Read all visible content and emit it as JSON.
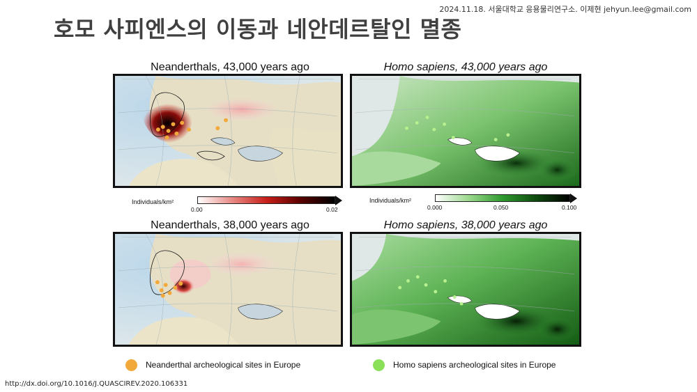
{
  "header": {
    "note": "2024.11.18. 서울대학교 응용물리연구소. 이제현 jehyun.lee@gmail.com",
    "title": "호모 사피엔스의 이동과 네안데르탈인 멸종"
  },
  "panels": {
    "nea_43": {
      "title": "Neanderthals, 43,000 years ago"
    },
    "hs_43": {
      "title": "Homo sapiens, 43,000 years ago"
    },
    "nea_38": {
      "title": "Neanderthals, 38,000 years ago"
    },
    "hs_38": {
      "title": "Homo sapiens, 38,000 years ago"
    }
  },
  "scales": {
    "neanderthal": {
      "label": "Individuals/km²",
      "min": "0.00",
      "max": "0.02",
      "color_low": "#ffffff",
      "color_mid": "#c8201b",
      "color_high": "#000000"
    },
    "sapiens": {
      "label": "Individuals/km²",
      "min": "0.000",
      "mid": "0.050",
      "max": "0.100",
      "color_low": "#ffffff",
      "color_mid": "#2f9a2f",
      "color_high": "#000000"
    }
  },
  "legend": {
    "neanderthal": {
      "label": "Neanderthal archeological sites in Europe",
      "color": "#f2a93b"
    },
    "sapiens": {
      "label": "Homo sapiens archeological sites in Europe",
      "color": "#8be05a"
    }
  },
  "citation": "http://dx.doi.org/10.1016/J.QUASCIREV.2020.106331"
}
